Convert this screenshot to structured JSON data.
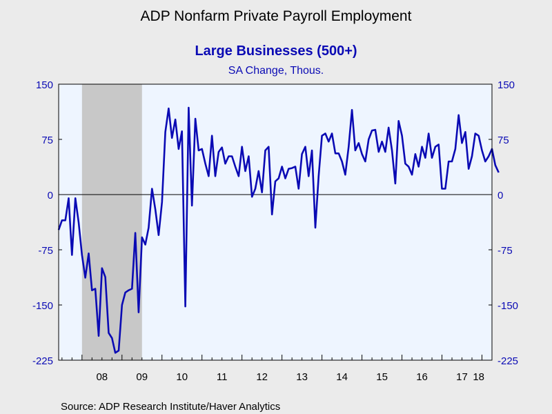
{
  "colors": {
    "background": "#ebebeb",
    "plot_background": "#eef5ff",
    "recession_shade": "#c8c8c8",
    "series_line": "#0a0ab4",
    "axis_text": "#0a0ab4"
  },
  "source": "Source:  ADP Research Institute/Haver Analytics",
  "chart_data": {
    "type": "line",
    "title": "ADP Nonfarm Private Payroll Employment",
    "subtitle": "Large Businesses (500+)",
    "units": "SA Change, Thous.",
    "ylim": [
      -225,
      150
    ],
    "yticks": [
      150,
      75,
      0,
      -75,
      -150,
      -225
    ],
    "ytick_labels": [
      "150",
      "75",
      "0",
      "-75",
      "-150",
      "-225"
    ],
    "dual_y_axis": true,
    "zero_line": true,
    "grid": false,
    "xlim": [
      "2007-06",
      "2018-04"
    ],
    "xtick_labels": [
      "08",
      "09",
      "10",
      "11",
      "12",
      "13",
      "14",
      "15",
      "16",
      "17",
      "18"
    ],
    "xtick_years": [
      2008,
      2009,
      2010,
      2011,
      2012,
      2013,
      2014,
      2015,
      2016,
      2017,
      2018
    ],
    "recession": {
      "start": "2008-01",
      "end": "2009-06"
    },
    "series": [
      {
        "start": "2007-06",
        "frequency": "monthly",
        "values": [
          -48,
          -35,
          -35,
          -5,
          -82,
          -5,
          -38,
          -82,
          -113,
          -80,
          -130,
          -128,
          -192,
          -100,
          -112,
          -188,
          -195,
          -215,
          -212,
          -150,
          -133,
          -130,
          -128,
          -52,
          -160,
          -58,
          -68,
          -45,
          8,
          -20,
          -55,
          -10,
          85,
          117,
          77,
          102,
          62,
          86,
          -152,
          118,
          -15,
          103,
          60,
          62,
          42,
          25,
          80,
          25,
          58,
          64,
          42,
          52,
          52,
          38,
          25,
          65,
          32,
          52,
          -3,
          8,
          32,
          3,
          60,
          65,
          -27,
          18,
          22,
          38,
          22,
          35,
          36,
          38,
          8,
          55,
          65,
          25,
          60,
          -45,
          25,
          80,
          83,
          72,
          83,
          56,
          56,
          45,
          27,
          65,
          115,
          60,
          70,
          55,
          45,
          75,
          87,
          88,
          58,
          72,
          58,
          91,
          60,
          15,
          100,
          80,
          42,
          38,
          27,
          55,
          38,
          65,
          50,
          83,
          50,
          65,
          68,
          8,
          8,
          45,
          45,
          62,
          108,
          70,
          85,
          35,
          52,
          83,
          80,
          60,
          45,
          52,
          62,
          40,
          30
        ]
      }
    ]
  }
}
